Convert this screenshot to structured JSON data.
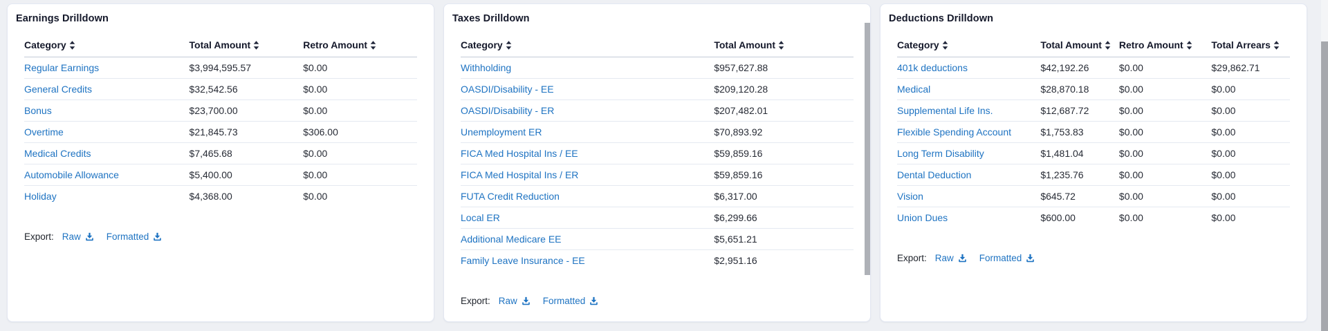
{
  "colors": {
    "background": "#eef0f4",
    "card": "#ffffff",
    "link": "#1e73c2",
    "header_text": "#14182a",
    "body_text": "#272b35",
    "row_divider": "#e4e9f1",
    "header_divider": "#c3cad7",
    "scrollbar_thumb": "#aeb1b7"
  },
  "panels": [
    {
      "title": "Earnings Drilldown",
      "columns": [
        "Category",
        "Total Amount",
        "Retro Amount"
      ],
      "rows": [
        [
          "Regular Earnings",
          "$3,994,595.57",
          "$0.00"
        ],
        [
          "General Credits",
          "$32,542.56",
          "$0.00"
        ],
        [
          "Bonus",
          "$23,700.00",
          "$0.00"
        ],
        [
          "Overtime",
          "$21,845.73",
          "$306.00"
        ],
        [
          "Medical Credits",
          "$7,465.68",
          "$0.00"
        ],
        [
          "Automobile Allowance",
          "$5,400.00",
          "$0.00"
        ],
        [
          "Holiday",
          "$4,368.00",
          "$0.00"
        ]
      ],
      "export_label": "Export:",
      "export_links": [
        "Raw",
        "Formatted"
      ]
    },
    {
      "title": "Taxes Drilldown",
      "columns": [
        "Category",
        "Total Amount"
      ],
      "rows": [
        [
          "Withholding",
          "$957,627.88"
        ],
        [
          "OASDI/Disability - EE",
          "$209,120.28"
        ],
        [
          "OASDI/Disability - ER",
          "$207,482.01"
        ],
        [
          "Unemployment ER",
          "$70,893.92"
        ],
        [
          "FICA Med Hospital Ins / EE",
          "$59,859.16"
        ],
        [
          "FICA Med Hospital Ins / ER",
          "$59,859.16"
        ],
        [
          "FUTA Credit Reduction",
          "$6,317.00"
        ],
        [
          "Local ER",
          "$6,299.66"
        ],
        [
          "Additional Medicare EE",
          "$5,651.21"
        ],
        [
          "Family Leave Insurance - EE",
          "$2,951.16"
        ]
      ],
      "export_label": "Export:",
      "export_links": [
        "Raw",
        "Formatted"
      ]
    },
    {
      "title": "Deductions Drilldown",
      "columns": [
        "Category",
        "Total Amount",
        "Retro Amount",
        "Total Arrears"
      ],
      "rows": [
        [
          "401k deductions",
          "$42,192.26",
          "$0.00",
          "$29,862.71"
        ],
        [
          "Medical",
          "$28,870.18",
          "$0.00",
          "$0.00"
        ],
        [
          "Supplemental Life Ins.",
          "$12,687.72",
          "$0.00",
          "$0.00"
        ],
        [
          "Flexible Spending Account",
          "$1,753.83",
          "$0.00",
          "$0.00"
        ],
        [
          "Long Term Disability",
          "$1,481.04",
          "$0.00",
          "$0.00"
        ],
        [
          "Dental Deduction",
          "$1,235.76",
          "$0.00",
          "$0.00"
        ],
        [
          "Vision",
          "$645.72",
          "$0.00",
          "$0.00"
        ],
        [
          "Union Dues",
          "$600.00",
          "$0.00",
          "$0.00"
        ]
      ],
      "export_label": "Export:",
      "export_links": [
        "Raw",
        "Formatted"
      ]
    }
  ]
}
